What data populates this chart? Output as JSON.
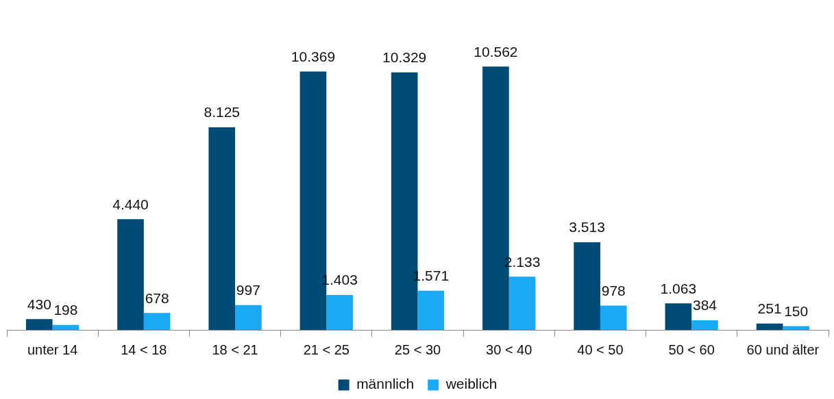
{
  "chart_data": {
    "type": "bar",
    "categories": [
      "unter 14",
      "14 < 18",
      "18 < 21",
      "21 < 25",
      "25 < 30",
      "30 < 40",
      "40 < 50",
      "50 < 60",
      "60 und älter"
    ],
    "series": [
      {
        "name": "männlich",
        "color": "#004a76",
        "values": [
          430,
          4440,
          8125,
          10369,
          10329,
          10562,
          3513,
          1063,
          251
        ],
        "value_labels": [
          "430",
          "4.440",
          "8.125",
          "10.369",
          "10.329",
          "10.562",
          "3.513",
          "1.063",
          "251"
        ]
      },
      {
        "name": "weiblich",
        "color": "#1aa9f5",
        "values": [
          198,
          678,
          997,
          1403,
          1571,
          2133,
          978,
          384,
          150
        ],
        "value_labels": [
          "198",
          "678",
          "997",
          "1.403",
          "1.571",
          "2.133",
          "978",
          "384",
          "150"
        ]
      }
    ],
    "legend": "bottom",
    "grid": false,
    "tick_labels": "x"
  }
}
